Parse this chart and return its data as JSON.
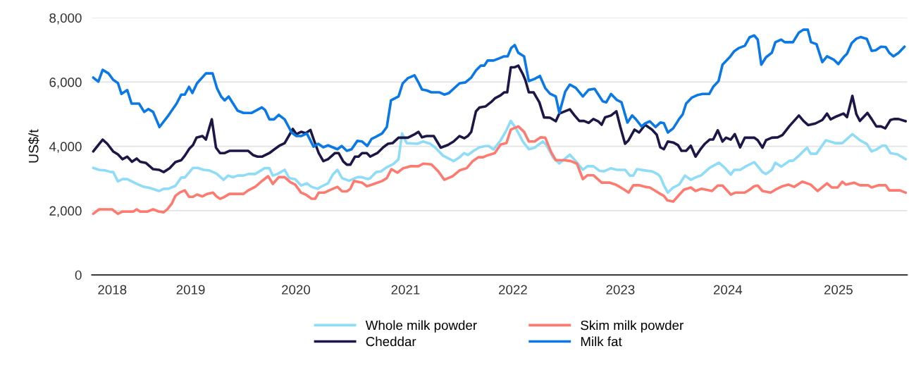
{
  "chart_data": {
    "type": "line",
    "ylabel": "US$/t",
    "xlim": [
      2018.26,
      2025.85
    ],
    "ylim": [
      0,
      8000
    ],
    "xticks": [
      {
        "value": 2018.45,
        "label": "2018"
      },
      {
        "value": 2019.18,
        "label": "2019"
      },
      {
        "value": 2020.16,
        "label": "2020"
      },
      {
        "value": 2021.18,
        "label": "2021"
      },
      {
        "value": 2022.18,
        "label": "2022"
      },
      {
        "value": 2023.18,
        "label": "2023"
      },
      {
        "value": 2024.18,
        "label": "2024"
      },
      {
        "value": 2025.21,
        "label": "2025"
      }
    ],
    "yticks": [
      {
        "value": 0,
        "label": "0"
      },
      {
        "value": 2000,
        "label": "2,000"
      },
      {
        "value": 4000,
        "label": "4,000"
      },
      {
        "value": 6000,
        "label": "6,000"
      },
      {
        "value": 8000,
        "label": "8,000"
      }
    ],
    "grid": "y",
    "legend": "bottom",
    "marker": "none",
    "line_style": "solid",
    "series": [
      {
        "name": "Whole milk powder",
        "color": "#8fdcf8",
        "x": [
          2018.273,
          2018.328,
          2018.383,
          2018.437,
          2018.459,
          2018.503,
          2018.546,
          2018.59,
          2018.667,
          2018.743,
          2018.798,
          2018.885,
          2018.929,
          2018.973,
          2019.038,
          2019.093,
          2019.126,
          2019.202,
          2019.246,
          2019.301,
          2019.355,
          2019.421,
          2019.486,
          2019.53,
          2019.574,
          2019.617,
          2019.672,
          2019.716,
          2019.781,
          2019.869,
          2019.913,
          2019.945,
          2019.989,
          2020.055,
          2020.098,
          2020.153,
          2020.208,
          2020.262,
          2020.306,
          2020.361,
          2020.415,
          2020.459,
          2020.503,
          2020.546,
          2020.59,
          2020.656,
          2020.732,
          2020.776,
          2020.83,
          2020.852,
          2020.907,
          2020.951,
          2021.006,
          2021.071,
          2021.115,
          2021.148,
          2021.191,
          2021.29,
          2021.344,
          2021.41,
          2021.454,
          2021.53,
          2021.629,
          2021.683,
          2021.727,
          2021.76,
          2021.814,
          2021.869,
          2021.924,
          2021.956,
          2022.0,
          2022.066,
          2022.12,
          2022.16,
          2022.208,
          2022.273,
          2022.328,
          2022.383,
          2022.459,
          2022.492,
          2022.557,
          2022.612,
          2022.71,
          2022.765,
          2022.831,
          2022.874,
          2022.929,
          2022.984,
          2023.027,
          2023.093,
          2023.148,
          2023.224,
          2023.268,
          2023.301,
          2023.334,
          2023.41,
          2023.475,
          2023.53,
          2023.552,
          2023.585,
          2023.622,
          2023.672,
          2023.727,
          2023.781,
          2023.836,
          2023.891,
          2023.934,
          2024.011,
          2024.098,
          2024.153,
          2024.208,
          2024.24,
          2024.295,
          2024.35,
          2024.426,
          2024.503,
          2024.536,
          2024.59,
          2024.623,
          2024.678,
          2024.754,
          2024.787,
          2024.842,
          2024.918,
          2024.951,
          2025.005,
          2025.093,
          2025.18,
          2025.246,
          2025.34,
          2025.41,
          2025.475,
          2025.519,
          2025.563,
          2025.617,
          2025.65,
          2025.694,
          2025.76,
          2025.836
        ],
        "values": [
          3330,
          3270,
          3250,
          3200,
          3200,
          2910,
          2980,
          2980,
          2850,
          2740,
          2710,
          2610,
          2680,
          2680,
          2770,
          3030,
          3030,
          3330,
          3330,
          3270,
          3250,
          3150,
          2960,
          3090,
          3040,
          3090,
          3090,
          3140,
          3140,
          3320,
          3320,
          3090,
          3140,
          3270,
          3010,
          2980,
          2780,
          2850,
          2740,
          2680,
          2780,
          2850,
          3120,
          3270,
          3010,
          2930,
          3040,
          3040,
          2980,
          3010,
          3200,
          3220,
          3350,
          3460,
          3600,
          4400,
          4100,
          4080,
          4150,
          4080,
          3970,
          3710,
          3540,
          3660,
          3790,
          3730,
          3860,
          3970,
          4010,
          4010,
          3900,
          4190,
          4500,
          4790,
          4560,
          4150,
          3910,
          3960,
          4150,
          4040,
          3640,
          3470,
          3740,
          3540,
          3270,
          3380,
          3380,
          3240,
          3220,
          3320,
          3270,
          3270,
          3090,
          3090,
          3290,
          3250,
          3220,
          3130,
          3050,
          2790,
          2560,
          2720,
          2810,
          3090,
          2960,
          3050,
          3100,
          3330,
          3490,
          3330,
          3120,
          3270,
          3270,
          3380,
          3510,
          3200,
          3140,
          3270,
          3490,
          3370,
          3550,
          3550,
          3710,
          3960,
          3770,
          3770,
          4190,
          4100,
          4100,
          4380,
          4190,
          4070,
          3840,
          3900,
          4020,
          4020,
          3790,
          3750,
          3600
        ]
      },
      {
        "name": "Skim milk powder",
        "color": "#ff7a6e",
        "x": [
          2018.273,
          2018.328,
          2018.448,
          2018.503,
          2018.546,
          2018.645,
          2018.678,
          2018.71,
          2018.776,
          2018.831,
          2018.885,
          2018.929,
          2018.962,
          2019.005,
          2019.038,
          2019.082,
          2019.126,
          2019.165,
          2019.202,
          2019.239,
          2019.29,
          2019.333,
          2019.388,
          2019.421,
          2019.454,
          2019.486,
          2019.541,
          2019.672,
          2019.716,
          2019.781,
          2019.847,
          2019.902,
          2019.945,
          2020.0,
          2020.055,
          2020.109,
          2020.153,
          2020.208,
          2020.251,
          2020.306,
          2020.339,
          2020.372,
          2020.426,
          2020.47,
          2020.546,
          2020.59,
          2020.634,
          2020.667,
          2020.7,
          2020.776,
          2020.82,
          2020.852,
          2020.885,
          2020.962,
          2021.006,
          2021.049,
          2021.104,
          2021.159,
          2021.224,
          2021.301,
          2021.344,
          2021.421,
          2021.486,
          2021.541,
          2021.618,
          2021.683,
          2021.749,
          2021.803,
          2021.858,
          2021.902,
          2021.935,
          2022.011,
          2022.066,
          2022.12,
          2022.16,
          2022.23,
          2022.284,
          2022.328,
          2022.383,
          2022.437,
          2022.481,
          2022.536,
          2022.579,
          2022.656,
          2022.721,
          2022.776,
          2022.831,
          2022.874,
          2022.929,
          2023.006,
          2023.082,
          2023.137,
          2023.213,
          2023.257,
          2023.301,
          2023.355,
          2023.41,
          2023.454,
          2023.508,
          2023.552,
          2023.585,
          2023.618,
          2023.672,
          2023.727,
          2023.771,
          2023.836,
          2023.88,
          2023.934,
          2024.033,
          2024.087,
          2024.131,
          2024.208,
          2024.251,
          2024.339,
          2024.382,
          2024.426,
          2024.459,
          2024.503,
          2024.579,
          2024.623,
          2024.689,
          2024.743,
          2024.798,
          2024.874,
          2024.951,
          2025.016,
          2025.104,
          2025.148,
          2025.202,
          2025.246,
          2025.279,
          2025.355,
          2025.41,
          2025.486,
          2025.519,
          2025.585,
          2025.65,
          2025.683,
          2025.782,
          2025.836
        ],
        "values": [
          1900,
          2040,
          2040,
          1900,
          1970,
          1970,
          2040,
          1970,
          1970,
          2040,
          1970,
          1950,
          2040,
          2220,
          2460,
          2570,
          2630,
          2430,
          2430,
          2500,
          2440,
          2520,
          2560,
          2440,
          2370,
          2410,
          2520,
          2520,
          2630,
          2740,
          2930,
          3070,
          2830,
          3040,
          3040,
          2880,
          2810,
          2560,
          2500,
          2370,
          2370,
          2560,
          2560,
          2630,
          2740,
          2600,
          2600,
          2680,
          2920,
          2870,
          2760,
          2790,
          2830,
          2920,
          3010,
          3290,
          3180,
          3320,
          3380,
          3380,
          3460,
          3440,
          3220,
          2960,
          3070,
          3250,
          3320,
          3530,
          3660,
          3660,
          3710,
          3790,
          4060,
          4100,
          4520,
          4620,
          4450,
          4150,
          4150,
          4280,
          4270,
          3820,
          3570,
          3570,
          3540,
          3460,
          2980,
          3100,
          3100,
          2870,
          2870,
          2810,
          2660,
          2560,
          2790,
          2790,
          2740,
          2720,
          2610,
          2520,
          2460,
          2320,
          2280,
          2490,
          2650,
          2720,
          2610,
          2680,
          2610,
          2780,
          2780,
          2500,
          2560,
          2560,
          2650,
          2760,
          2780,
          2610,
          2560,
          2650,
          2760,
          2810,
          2740,
          2900,
          2810,
          2610,
          2850,
          2720,
          2720,
          2900,
          2810,
          2870,
          2790,
          2790,
          2720,
          2790,
          2790,
          2630,
          2630,
          2560
        ]
      },
      {
        "name": "Cheddar",
        "color": "#1c1746",
        "x": [
          2018.273,
          2018.361,
          2018.404,
          2018.459,
          2018.503,
          2018.546,
          2018.59,
          2018.634,
          2018.678,
          2018.71,
          2018.765,
          2018.831,
          2018.885,
          2018.929,
          2018.984,
          2019.038,
          2019.093,
          2019.126,
          2019.169,
          2019.202,
          2019.235,
          2019.29,
          2019.322,
          2019.377,
          2019.416,
          2019.454,
          2019.497,
          2019.541,
          2019.716,
          2019.76,
          2019.803,
          2019.847,
          2019.913,
          2019.956,
          2020.011,
          2020.055,
          2020.131,
          2020.164,
          2020.208,
          2020.251,
          2020.295,
          2020.328,
          2020.372,
          2020.415,
          2020.459,
          2020.524,
          2020.557,
          2020.601,
          2020.634,
          2020.667,
          2020.71,
          2020.743,
          2020.776,
          2020.82,
          2020.852,
          2020.918,
          2020.973,
          2021.017,
          2021.06,
          2021.115,
          2021.202,
          2021.257,
          2021.301,
          2021.333,
          2021.377,
          2021.443,
          2021.508,
          2021.574,
          2021.628,
          2021.683,
          2021.727,
          2021.76,
          2021.792,
          2021.836,
          2021.869,
          2021.924,
          2021.978,
          2022.011,
          2022.066,
          2022.098,
          2022.127,
          2022.16,
          2022.197,
          2022.23,
          2022.273,
          2022.295,
          2022.328,
          2022.372,
          2022.426,
          2022.47,
          2022.525,
          2022.579,
          2022.612,
          2022.71,
          2022.754,
          2022.798,
          2022.842,
          2022.885,
          2022.929,
          2022.973,
          2023.006,
          2023.038,
          2023.093,
          2023.143,
          2023.18,
          2023.224,
          2023.257,
          2023.312,
          2023.355,
          2023.41,
          2023.475,
          2023.519,
          2023.552,
          2023.585,
          2023.622,
          2023.672,
          2023.716,
          2023.749,
          2023.792,
          2023.836,
          2023.88,
          2023.924,
          2023.967,
          2024.011,
          2024.044,
          2024.087,
          2024.131,
          2024.164,
          2024.208,
          2024.245,
          2024.295,
          2024.339,
          2024.426,
          2024.459,
          2024.503,
          2024.536,
          2024.59,
          2024.645,
          2024.689,
          2024.754,
          2024.842,
          2024.885,
          2024.929,
          2024.995,
          2025.06,
          2025.104,
          2025.137,
          2025.191,
          2025.257,
          2025.29,
          2025.34,
          2025.377,
          2025.41,
          2025.48,
          2025.519,
          2025.563,
          2025.606,
          2025.646,
          2025.694,
          2025.727,
          2025.77,
          2025.836
        ],
        "values": [
          3840,
          4210,
          4080,
          3840,
          3750,
          3600,
          3680,
          3520,
          3620,
          3520,
          3480,
          3290,
          3270,
          3200,
          3320,
          3510,
          3570,
          3710,
          3930,
          4040,
          4270,
          4320,
          4210,
          4840,
          3960,
          3790,
          3790,
          3860,
          3860,
          3730,
          3680,
          3680,
          3790,
          3900,
          4030,
          4100,
          4540,
          4380,
          4450,
          4410,
          4510,
          4190,
          3790,
          3540,
          3600,
          3790,
          3790,
          3530,
          3430,
          3430,
          3680,
          3680,
          3790,
          3790,
          3680,
          3790,
          3970,
          4080,
          4100,
          4270,
          4270,
          4360,
          4450,
          4280,
          4320,
          4320,
          3960,
          4040,
          4150,
          4320,
          4250,
          4320,
          4450,
          5090,
          5210,
          5240,
          5380,
          5490,
          5590,
          5680,
          5680,
          6460,
          6460,
          6510,
          6240,
          6070,
          5680,
          5680,
          5370,
          4900,
          4890,
          4780,
          5020,
          5150,
          4960,
          4790,
          4790,
          4730,
          4850,
          4780,
          4670,
          4900,
          4960,
          5090,
          4600,
          4080,
          4190,
          4520,
          4430,
          4670,
          4520,
          4360,
          3970,
          3910,
          4150,
          4120,
          4040,
          3860,
          3860,
          4020,
          3680,
          3900,
          4080,
          4210,
          4210,
          4500,
          4150,
          4270,
          4210,
          4380,
          3970,
          4270,
          4270,
          4190,
          3960,
          4190,
          4270,
          4280,
          4350,
          4630,
          4960,
          4790,
          4660,
          4710,
          4820,
          5020,
          4840,
          4930,
          5020,
          4910,
          5570,
          5000,
          4790,
          5040,
          4850,
          4620,
          4620,
          4560,
          4820,
          4850,
          4850,
          4780
        ]
      },
      {
        "name": "Milk fat",
        "color": "#0a78e6",
        "x": [
          2018.273,
          2018.321,
          2018.361,
          2018.415,
          2018.459,
          2018.503,
          2018.536,
          2018.59,
          2018.63,
          2018.7,
          2018.748,
          2018.787,
          2018.831,
          2018.89,
          2018.973,
          2019.049,
          2019.093,
          2019.126,
          2019.165,
          2019.196,
          2019.239,
          2019.322,
          2019.384,
          2019.425,
          2019.464,
          2019.497,
          2019.534,
          2019.617,
          2019.672,
          2019.749,
          2019.843,
          2019.873,
          2019.913,
          2019.956,
          2020.0,
          2020.055,
          2020.12,
          2020.164,
          2020.208,
          2020.262,
          2020.324,
          2020.367,
          2020.415,
          2020.459,
          2020.546,
          2020.586,
          2020.634,
          2020.678,
          2020.732,
          2020.776,
          2020.824,
          2020.864,
          2020.907,
          2020.962,
          2021.006,
          2021.045,
          2021.115,
          2021.154,
          2021.202,
          2021.264,
          2021.294,
          2021.333,
          2021.377,
          2021.421,
          2021.497,
          2021.541,
          2021.585,
          2021.683,
          2021.738,
          2021.792,
          2021.836,
          2021.88,
          2021.913,
          2021.945,
          2022.0,
          2022.055,
          2022.098,
          2022.131,
          2022.164,
          2022.197,
          2022.23,
          2022.284,
          2022.328,
          2022.383,
          2022.431,
          2022.481,
          2022.525,
          2022.579,
          2022.612,
          2022.667,
          2022.71,
          2022.765,
          2022.831,
          2022.885,
          2022.94,
          2023.016,
          2023.049,
          2023.093,
          2023.148,
          2023.191,
          2023.246,
          2023.29,
          2023.323,
          2023.377,
          2023.41,
          2023.454,
          2023.508,
          2023.552,
          2023.585,
          2023.622,
          2023.672,
          2023.727,
          2023.76,
          2023.792,
          2023.847,
          2023.902,
          2023.945,
          2024.007,
          2024.044,
          2024.094,
          2024.131,
          2024.197,
          2024.24,
          2024.284,
          2024.339,
          2024.382,
          2024.426,
          2024.459,
          2024.492,
          2024.536,
          2024.59,
          2024.623,
          2024.678,
          2024.71,
          2024.787,
          2024.842,
          2024.885,
          2024.925,
          2024.955,
          2025.006,
          2025.06,
          2025.104,
          2025.169,
          2025.209,
          2025.257,
          2025.29,
          2025.333,
          2025.377,
          2025.416,
          2025.475,
          2025.519,
          2025.558,
          2025.606,
          2025.65,
          2025.683,
          2025.722,
          2025.77,
          2025.825
        ],
        "values": [
          6140,
          6010,
          6380,
          6270,
          6070,
          5970,
          5630,
          5750,
          5330,
          5330,
          5070,
          5160,
          5070,
          4600,
          4960,
          5330,
          5610,
          5610,
          5850,
          5660,
          5960,
          6270,
          6270,
          5810,
          5550,
          5430,
          5550,
          5110,
          5040,
          5040,
          5210,
          5130,
          4840,
          4840,
          4980,
          4840,
          4430,
          4320,
          4320,
          4400,
          3990,
          4080,
          3970,
          4030,
          3910,
          4010,
          3860,
          3910,
          4170,
          4150,
          4010,
          4230,
          4300,
          4400,
          4600,
          5430,
          5550,
          5960,
          6120,
          6210,
          6030,
          5770,
          5740,
          5680,
          5680,
          5610,
          5660,
          5960,
          5990,
          6140,
          6360,
          6510,
          6510,
          6670,
          6670,
          6740,
          6800,
          6800,
          7060,
          7150,
          6910,
          6800,
          6030,
          6100,
          6190,
          5810,
          5640,
          5550,
          5040,
          5700,
          5920,
          5820,
          5550,
          5760,
          5790,
          5400,
          5370,
          5630,
          5440,
          5370,
          4740,
          4960,
          4850,
          4620,
          4710,
          4780,
          4600,
          4740,
          4720,
          4430,
          4560,
          4850,
          4990,
          5330,
          5520,
          5600,
          5630,
          5630,
          5850,
          6030,
          6540,
          6770,
          6960,
          7060,
          7130,
          7390,
          7450,
          7320,
          6540,
          6770,
          6910,
          7240,
          7320,
          7240,
          7240,
          7540,
          7630,
          7630,
          7240,
          7180,
          6620,
          6800,
          6690,
          6560,
          6770,
          6880,
          7210,
          7350,
          7400,
          7340,
          6970,
          6990,
          7100,
          7090,
          6910,
          6800,
          6910,
          7100
        ]
      }
    ]
  }
}
